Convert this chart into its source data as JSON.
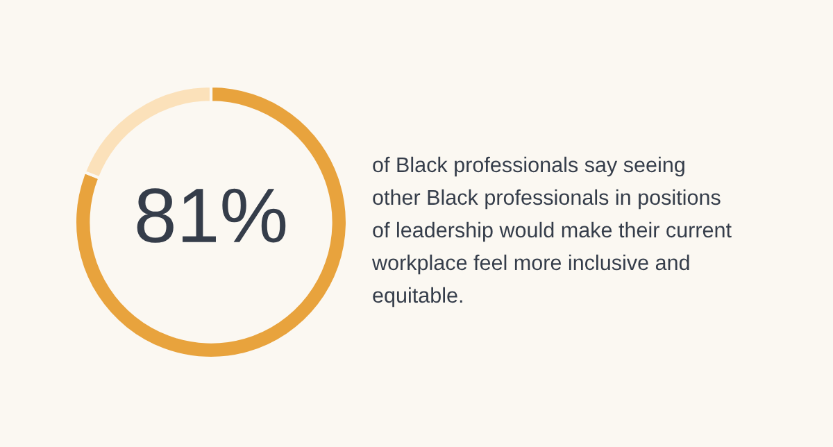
{
  "chart_data": {
    "type": "donut",
    "categories": [
      null,
      null
    ],
    "values": [
      81,
      19
    ],
    "colors": [
      "#e8a33d",
      "#fbe1ba"
    ],
    "value_labels": [
      "81%",
      null
    ],
    "annotations": [
      "of Black professionals say seeing other Black professionals in positions of leadership would make their current workplace feel more inclusive and equitable."
    ]
  }
}
